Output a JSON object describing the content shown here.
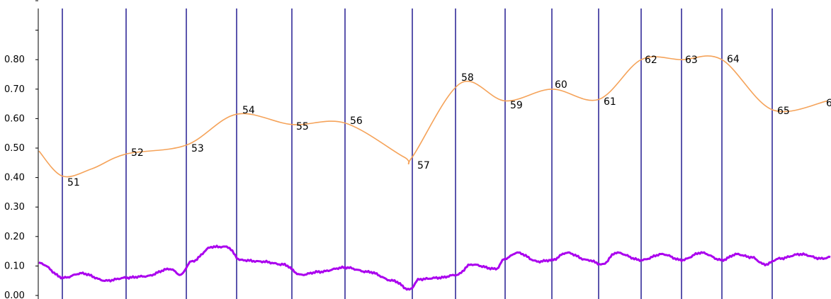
{
  "chart_data": {
    "type": "line",
    "ylim": [
      0,
      1.0
    ],
    "y_ticks": [
      "0.00",
      "0.10",
      "0.20",
      "0.30",
      "0.40",
      "0.50",
      "0.60",
      "0.70",
      "0.80",
      "",
      ""
    ],
    "colors": {
      "orange_series": "#f5a35a",
      "purple_series": "#aa00ee",
      "vertical_lines": "#5b55ad",
      "axis": "#000000"
    },
    "vertical_markers": [
      88,
      178,
      263,
      334,
      412,
      487,
      582,
      643,
      713,
      779,
      845,
      905,
      962,
      1019,
      1090
    ],
    "point_labels": [
      "51",
      "52",
      "53",
      "54",
      "55",
      "56",
      "57",
      "58",
      "59",
      "60",
      "61",
      "62",
      "63",
      "64",
      "65",
      "6"
    ],
    "series": [
      {
        "key": "orange",
        "points": [
          [
            55,
            0.49
          ],
          [
            88,
            0.405
          ],
          [
            130,
            0.43
          ],
          [
            178,
            0.48
          ],
          [
            263,
            0.51
          ],
          [
            334,
            0.615
          ],
          [
            412,
            0.58
          ],
          [
            487,
            0.585
          ],
          [
            570,
            0.47
          ],
          [
            582,
            0.47
          ],
          [
            650,
            0.72
          ],
          [
            713,
            0.66
          ],
          [
            779,
            0.7
          ],
          [
            845,
            0.665
          ],
          [
            905,
            0.8
          ],
          [
            962,
            0.8
          ],
          [
            1019,
            0.8
          ],
          [
            1090,
            0.63
          ],
          [
            1168,
            0.66
          ]
        ]
      },
      {
        "key": "purple",
        "points": [
          [
            55,
            0.11
          ],
          [
            90,
            0.06
          ],
          [
            115,
            0.075
          ],
          [
            150,
            0.05
          ],
          [
            178,
            0.06
          ],
          [
            205,
            0.065
          ],
          [
            240,
            0.09
          ],
          [
            255,
            0.07
          ],
          [
            270,
            0.115
          ],
          [
            300,
            0.165
          ],
          [
            320,
            0.165
          ],
          [
            340,
            0.12
          ],
          [
            370,
            0.115
          ],
          [
            400,
            0.105
          ],
          [
            425,
            0.07
          ],
          [
            450,
            0.08
          ],
          [
            487,
            0.095
          ],
          [
            520,
            0.08
          ],
          [
            555,
            0.05
          ],
          [
            578,
            0.02
          ],
          [
            592,
            0.055
          ],
          [
            620,
            0.06
          ],
          [
            645,
            0.07
          ],
          [
            665,
            0.105
          ],
          [
            700,
            0.09
          ],
          [
            713,
            0.125
          ],
          [
            730,
            0.145
          ],
          [
            760,
            0.115
          ],
          [
            779,
            0.12
          ],
          [
            800,
            0.145
          ],
          [
            830,
            0.12
          ],
          [
            850,
            0.105
          ],
          [
            870,
            0.145
          ],
          [
            905,
            0.12
          ],
          [
            935,
            0.14
          ],
          [
            962,
            0.12
          ],
          [
            990,
            0.145
          ],
          [
            1019,
            0.12
          ],
          [
            1040,
            0.14
          ],
          [
            1060,
            0.13
          ],
          [
            1080,
            0.105
          ],
          [
            1100,
            0.125
          ],
          [
            1130,
            0.14
          ],
          [
            1160,
            0.125
          ],
          [
            1172,
            0.13
          ]
        ]
      }
    ]
  }
}
